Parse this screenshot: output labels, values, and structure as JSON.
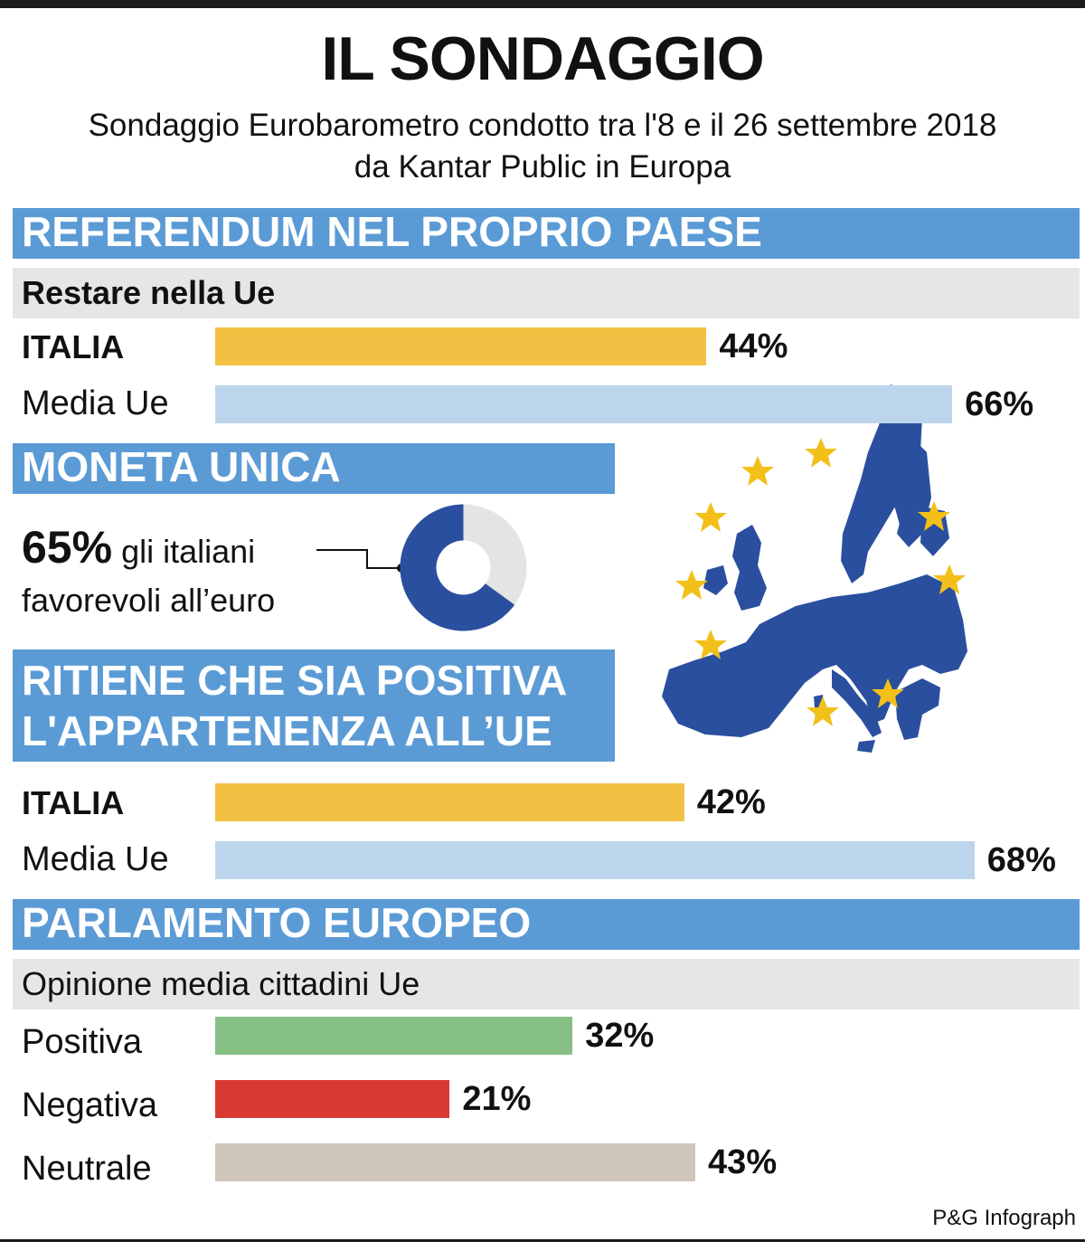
{
  "title": "IL SONDAGGIO",
  "subtitle_line1": "Sondaggio Eurobarometro condotto tra l'8 e il 26 settembre 2018",
  "subtitle_line2": "da Kantar Public in Europa",
  "colors": {
    "band": "#5b9bd5",
    "italia": "#f2c042",
    "media_ue": "#bcd5ec",
    "positiva": "#86c084",
    "negativa": "#d83a33",
    "neutrale": "#cfc5b8",
    "donut_fill": "#2a4f9e",
    "donut_rest": "#e4e4e4",
    "map_fill": "#2a4f9e",
    "star": "#f2c019"
  },
  "sections": {
    "referendum": {
      "header": "REFERENDUM NEL PROPRIO PAESE",
      "subheader": "Restare nella Ue"
    },
    "moneta": {
      "header": "MONETA UNICA",
      "big_value": "65%",
      "text1": "gli italiani",
      "text2": "favorevoli all’euro"
    },
    "appartenenza": {
      "header_line1": "RITIENE CHE SIA POSITIVA",
      "header_line2": "L'APPARTENENZA ALL’UE"
    },
    "parlamento": {
      "header": "PARLAMENTO EUROPEO",
      "subheader": "Opinione media cittadini Ue"
    }
  },
  "source": "P&G Infograph",
  "chart_data": [
    {
      "type": "bar",
      "orientation": "horizontal",
      "categories": [
        "ITALIA",
        "Media Ue"
      ],
      "values": [
        44,
        66
      ],
      "value_labels": [
        "44%",
        "66%"
      ],
      "unit": "%"
    },
    {
      "type": "pie",
      "variant": "donut",
      "categories": [
        "favorevoli"
      ],
      "values": [
        65
      ],
      "value_labels": [
        "65%"
      ]
    },
    {
      "type": "bar",
      "orientation": "horizontal",
      "categories": [
        "ITALIA",
        "Media Ue"
      ],
      "values": [
        42,
        68
      ],
      "value_labels": [
        "42%",
        "68%"
      ],
      "unit": "%"
    },
    {
      "type": "bar",
      "orientation": "horizontal",
      "categories": [
        "Positiva",
        "Negativa",
        "Neutrale"
      ],
      "values": [
        32,
        21,
        43
      ],
      "value_labels": [
        "32%",
        "21%",
        "43%"
      ],
      "unit": "%"
    }
  ]
}
